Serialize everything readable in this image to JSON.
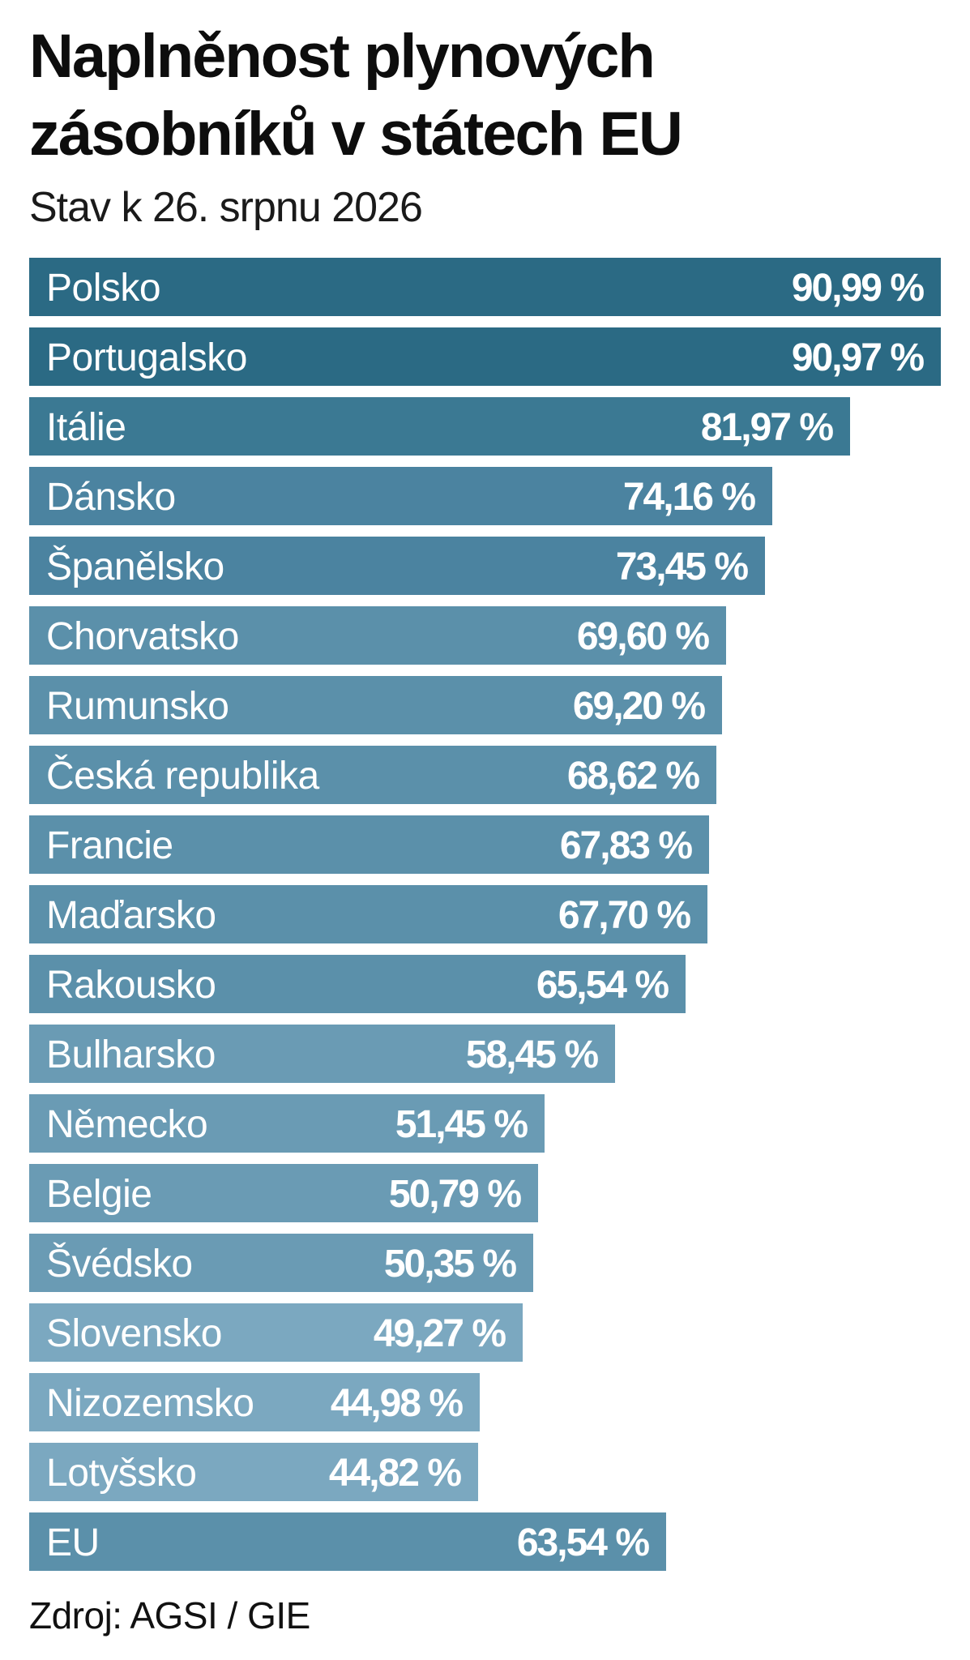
{
  "chart_data": {
    "type": "bar",
    "orientation": "horizontal",
    "title": "Naplněnost plynových zásobníků v státech EU",
    "subtitle": "Stav k 26. srpnu 2026",
    "source": "Zdroj: AGSI / GIE",
    "unit": "%",
    "xlim": [
      0,
      91
    ],
    "grid": false,
    "legend": "none",
    "categories": [
      "Polsko",
      "Portugalsko",
      "Itálie",
      "Dánsko",
      "Španělsko",
      "Chorvatsko",
      "Rumunsko",
      "Česká republika",
      "Francie",
      "Maďarsko",
      "Rakousko",
      "Bulharsko",
      "Německo",
      "Belgie",
      "Švédsko",
      "Slovensko",
      "Nizozemsko",
      "Lotyšsko",
      "EU"
    ],
    "values": [
      90.99,
      90.97,
      81.97,
      74.16,
      73.45,
      69.6,
      69.2,
      68.62,
      67.83,
      67.7,
      65.54,
      58.45,
      51.45,
      50.79,
      50.35,
      49.27,
      44.98,
      44.82,
      63.54
    ],
    "value_labels": [
      "90,99 %",
      "90,97 %",
      "81,97 %",
      "74,16 %",
      "73,45 %",
      "69,60 %",
      "69,20 %",
      "68,62 %",
      "67,83 %",
      "67,70 %",
      "65,54 %",
      "58,45 %",
      "51,45 %",
      "50,79 %",
      "50,35 %",
      "49,27 %",
      "44,98 %",
      "44,82 %",
      "63,54 %"
    ],
    "colors": [
      "#2b6a84",
      "#2b6a84",
      "#3b7993",
      "#4b83a0",
      "#4b83a0",
      "#5b90aa",
      "#5b90aa",
      "#5b90aa",
      "#5b90aa",
      "#5b90aa",
      "#5b90aa",
      "#6a9bb4",
      "#6a9bb4",
      "#6a9bb4",
      "#6a9bb4",
      "#7ba8c0",
      "#7ba8c0",
      "#7ba8c0",
      "#5b90aa"
    ]
  }
}
